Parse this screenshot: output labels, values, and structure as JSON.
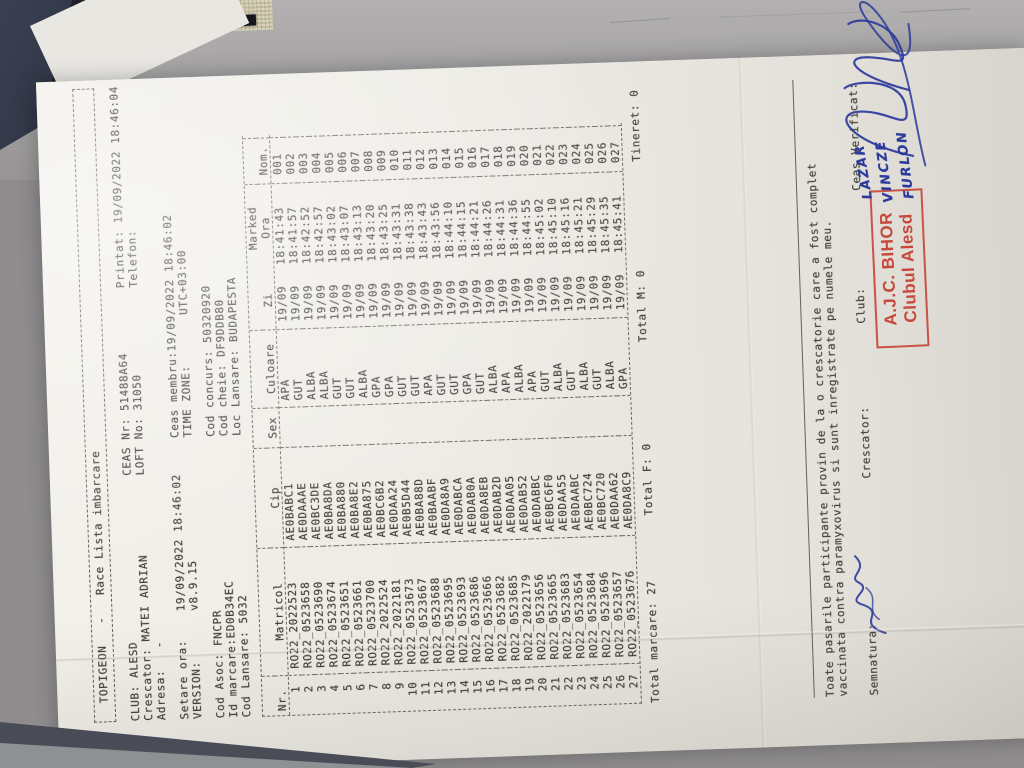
{
  "colors": {
    "paper": "#efede7",
    "ink": "#44413c",
    "stamp_red": "#c43b2e",
    "pen_blue": "#2c3a9b",
    "mat_beige": "#d1cbb2",
    "fabric_navy": "#262c3a"
  },
  "document": {
    "title": "TOPIGEON   -   Race Lista imbarcare",
    "info_group1": [
      "CLUB: ALESD                       CEAS Nr: 51488A64         Printat: 19/09/2022 18:46:04",
      "Crescator: MATEI ADRIAN           LOFT No: 31050            Telefon:",
      "Adresa:   -"
    ],
    "info_group2": [
      "Setare ora:    19/09/2022 18:46:02     Ceas membru:19/09/2022 18:46:02",
      "VERSION:       v8.9.15                 TIME ZONE:       UTC+03:00"
    ],
    "info_group3": [
      "Cod Asoc: FNCPR                        Cod concurs: 50320920",
      "Id marcare:ED0B34EC                    Cod cheie: DF9DDB80",
      "Cod Lansare: 5032                      Loc Lansare: BUDAPESTA"
    ],
    "table": {
      "columns": [
        "Nr.",
        "Matricol",
        "Cip",
        "Sex",
        "Culoare",
        "Marked",
        "Nom."
      ],
      "marked_subcolumns": [
        "Zi",
        "Ora"
      ],
      "rows": [
        [
          "1",
          "RO22_2022523",
          "AE0BABC1",
          "",
          "APA",
          "19/09",
          "18:41:43",
          "001"
        ],
        [
          "2",
          "RO22_0523658",
          "AE0DAAAE",
          "",
          "GUT",
          "19/09",
          "18:41:57",
          "002"
        ],
        [
          "3",
          "RO22_0523690",
          "AE0BC3DE",
          "",
          "ALBA",
          "19/09",
          "18:42:52",
          "003"
        ],
        [
          "4",
          "RO22_0523674",
          "AE0BA8DA",
          "",
          "ALBA",
          "19/09",
          "18:42:57",
          "004"
        ],
        [
          "5",
          "RO22_0523651",
          "AE0BA880",
          "",
          "GUT",
          "19/09",
          "18:43:02",
          "005"
        ],
        [
          "6",
          "RO22_0523661",
          "AE0BA8E2",
          "",
          "GUT",
          "19/09",
          "18:43:07",
          "006"
        ],
        [
          "7",
          "RO22_0523700",
          "AE0BA875",
          "",
          "ALBA",
          "19/09",
          "18:43:13",
          "007"
        ],
        [
          "8",
          "RO22_2022524",
          "AE0BC6B2",
          "",
          "GPA",
          "19/09",
          "18:43:20",
          "008"
        ],
        [
          "9",
          "RO22_2022181",
          "AE0DAA24",
          "",
          "GPA",
          "19/09",
          "18:43:25",
          "009"
        ],
        [
          "10",
          "RO22_0523673",
          "AE0B5D44",
          "",
          "GUT",
          "19/09",
          "18:43:31",
          "010"
        ],
        [
          "11",
          "RO22_0523667",
          "AE0BA88D",
          "",
          "GUT",
          "19/09",
          "18:43:38",
          "011"
        ],
        [
          "12",
          "RO22_0523688",
          "AE0BAABF",
          "",
          "APA",
          "19/09",
          "18:43:43",
          "012"
        ],
        [
          "13",
          "RO22_0523695",
          "AE0DA8A9",
          "",
          "GUT",
          "19/09",
          "18:43:56",
          "013"
        ],
        [
          "14",
          "RO22_0523693",
          "AE0DABCA",
          "",
          "GUT",
          "19/09",
          "18:44:10",
          "014"
        ],
        [
          "15",
          "RO22_0523686",
          "AE0DAB0A",
          "",
          "GPA",
          "19/09",
          "18:44:15",
          "015"
        ],
        [
          "16",
          "RO22_0523666",
          "AE0DA8EB",
          "",
          "GUT",
          "19/09",
          "18:44:21",
          "016"
        ],
        [
          "17",
          "RO22_0523682",
          "AE0DAB2D",
          "",
          "ALBA",
          "19/09",
          "18:44:26",
          "017"
        ],
        [
          "18",
          "RO22_0523685",
          "AE0DAA05",
          "",
          "APA",
          "19/09",
          "18:44:31",
          "018"
        ],
        [
          "19",
          "RO22_2022179",
          "AE0DAB52",
          "",
          "ALBA",
          "19/09",
          "18:44:36",
          "019"
        ],
        [
          "20",
          "RO22_0523656",
          "AE0DABBC",
          "",
          "APA",
          "19/09",
          "18:44:55",
          "020"
        ],
        [
          "21",
          "RO22_0523665",
          "AE0BC6F0",
          "",
          "GUT",
          "19/09",
          "18:45:02",
          "021"
        ],
        [
          "22",
          "RO22_0523683",
          "AE0DAA55",
          "",
          "ALBA",
          "19/09",
          "18:45:10",
          "022"
        ],
        [
          "23",
          "RO22_0523654",
          "AE0DAABC",
          "",
          "GUT",
          "19/09",
          "18:45:16",
          "023"
        ],
        [
          "24",
          "RO22_0523684",
          "AE0BC724",
          "",
          "ALBA",
          "19/09",
          "18:45:21",
          "024"
        ],
        [
          "25",
          "RO22_0523696",
          "AE0BC720",
          "",
          "GUT",
          "19/09",
          "18:45:29",
          "025"
        ],
        [
          "26",
          "RO22_0523657",
          "AE0DAA62",
          "",
          "ALBA",
          "19/09",
          "18:45:35",
          "026"
        ],
        [
          "27",
          "RO22_0523676",
          "AE0DA8C9",
          "",
          "GPA",
          "19/09",
          "18:45:41",
          "027"
        ]
      ]
    },
    "totals_line": "Total marcare: 27         Total F: 0              Total M: 0               Tineret: 0",
    "declaration": [
      "Toate pasarile participante provin de la o crescatorie care a fost complet",
      "vaccinata contra paramyxovirus si sunt inregistrate pe numele meu."
    ],
    "signature_labels": {
      "semnatura": "Semnatura:",
      "crescator": "Crescator:",
      "club": "Club:",
      "ceas_verificat": "Ceas Verificat:"
    },
    "stamp": {
      "line1": "A.J.C. BIHOR",
      "line2": "Clubul Alesd"
    },
    "handwriting": {
      "names": [
        "LAZAR",
        "VINCZE",
        "FURLON"
      ]
    }
  }
}
